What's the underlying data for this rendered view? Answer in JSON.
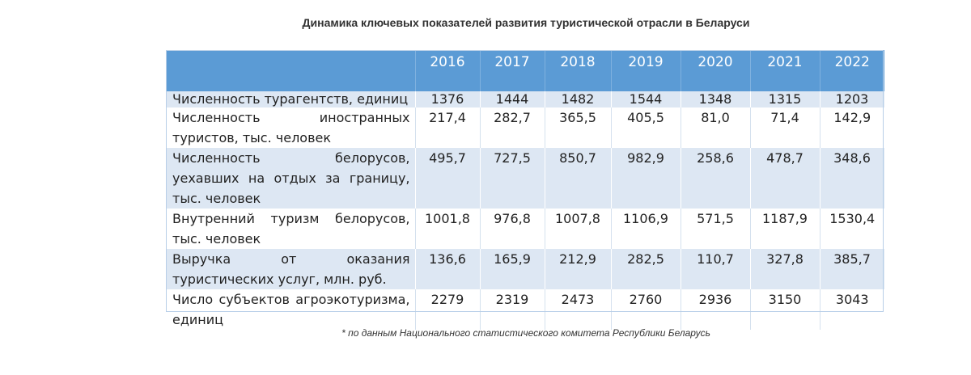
{
  "title": "Динамика ключевых показателей развития туристической отрасли в Беларуси",
  "table": {
    "years": [
      "2016",
      "2017",
      "2018",
      "2019",
      "2020",
      "2021",
      "2022"
    ],
    "rows": [
      {
        "label": "Численность турагентств, единиц",
        "values": [
          "1376",
          "1444",
          "1482",
          "1544",
          "1348",
          "1315",
          "1203"
        ]
      },
      {
        "label": "Численность иностранных туристов, тыс. человек",
        "values": [
          "217,4",
          "282,7",
          "365,5",
          "405,5",
          "81,0",
          "71,4",
          "142,9"
        ]
      },
      {
        "label": "Численность белорусов, уехавших на отдых за границу, тыс. человек",
        "values": [
          "495,7",
          "727,5",
          "850,7",
          "982,9",
          "258,6",
          "478,7",
          "348,6"
        ]
      },
      {
        "label": "Внутренний туризм белорусов, тыс. человек",
        "values": [
          "1001,8",
          "976,8",
          "1007,8",
          "1106,9",
          "571,5",
          "1187,9",
          "1530,4"
        ]
      },
      {
        "label": "Выручка от оказания туристических услуг, млн. руб.",
        "values": [
          "136,6",
          "165,9",
          "212,9",
          "282,5",
          "110,7",
          "327,8",
          "385,7"
        ]
      },
      {
        "label": "Число субъектов агроэкотуризма, единиц",
        "values": [
          "2279",
          "2319",
          "2473",
          "2760",
          "2936",
          "3150",
          "3043"
        ]
      }
    ]
  },
  "footnote": "* по данным Национального статистического комитета Республики Беларусь",
  "colors": {
    "header": "#5b9bd5",
    "stripe": "#dde7f3"
  }
}
